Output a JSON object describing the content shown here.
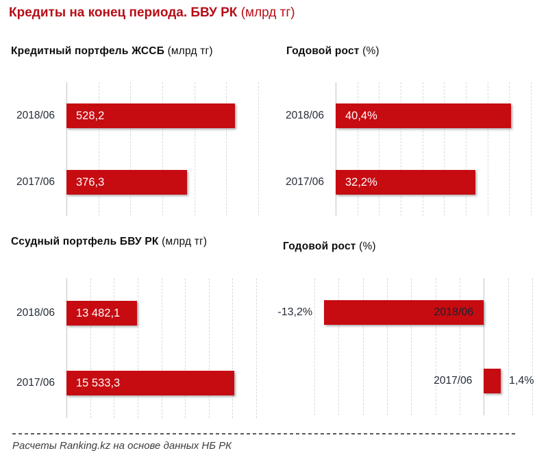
{
  "page_title": {
    "main": "Кредиты на конец периода. БВУ РК",
    "unit": "(млрд тг)"
  },
  "source_note": "Расчеты Ranking.kz на основе данных НБ РК",
  "colors": {
    "bar": "#c60b11",
    "title": "#b60d17",
    "category_label": "#232b36",
    "grid": "#d8d8d8",
    "axis": "#c3c3c3"
  },
  "chart_data": [
    {
      "type": "bar",
      "orientation": "horizontal",
      "title": "Кредитный портфель ЖССБ",
      "title_unit": "(млрд тг)",
      "categories": [
        "2018/06",
        "2017/06"
      ],
      "values": [
        528.2,
        376.3
      ],
      "value_labels": [
        "528,2",
        "376,3"
      ],
      "xlim": [
        0,
        600
      ],
      "grid_step": 100,
      "grid": true,
      "legend": "none",
      "label_mode": "standard"
    },
    {
      "type": "bar",
      "orientation": "horizontal",
      "title": "Годовой рост",
      "title_unit": "(%)",
      "categories": [
        "2018/06",
        "2017/06"
      ],
      "values": [
        40.4,
        32.2
      ],
      "value_labels": [
        "40,4%",
        "32,2%"
      ],
      "xlim": [
        0,
        45
      ],
      "grid_step": 5,
      "grid": true,
      "legend": "none",
      "label_mode": "standard"
    },
    {
      "type": "bar",
      "orientation": "horizontal",
      "title": "Ссудный портфель БВУ РК",
      "title_unit": "(млрд тг)",
      "categories": [
        "2018/06",
        "2017/06"
      ],
      "values": [
        13482.1,
        15533.3
      ],
      "value_labels": [
        "13 482,1",
        "15 533,3"
      ],
      "xlim": [
        12000,
        16000
      ],
      "grid_step": 500,
      "grid": true,
      "legend": "none",
      "label_mode": "standard"
    },
    {
      "type": "bar",
      "orientation": "horizontal",
      "title": "Годовой рост",
      "title_unit": "(%)",
      "categories": [
        "2018/06",
        "2017/06"
      ],
      "values": [
        -13.2,
        1.4
      ],
      "value_labels": [
        "-13,2%",
        "1,4%"
      ],
      "xlim": [
        -14,
        4
      ],
      "grid_step": 2,
      "grid": true,
      "legend": "none",
      "label_mode": "diverging"
    }
  ]
}
